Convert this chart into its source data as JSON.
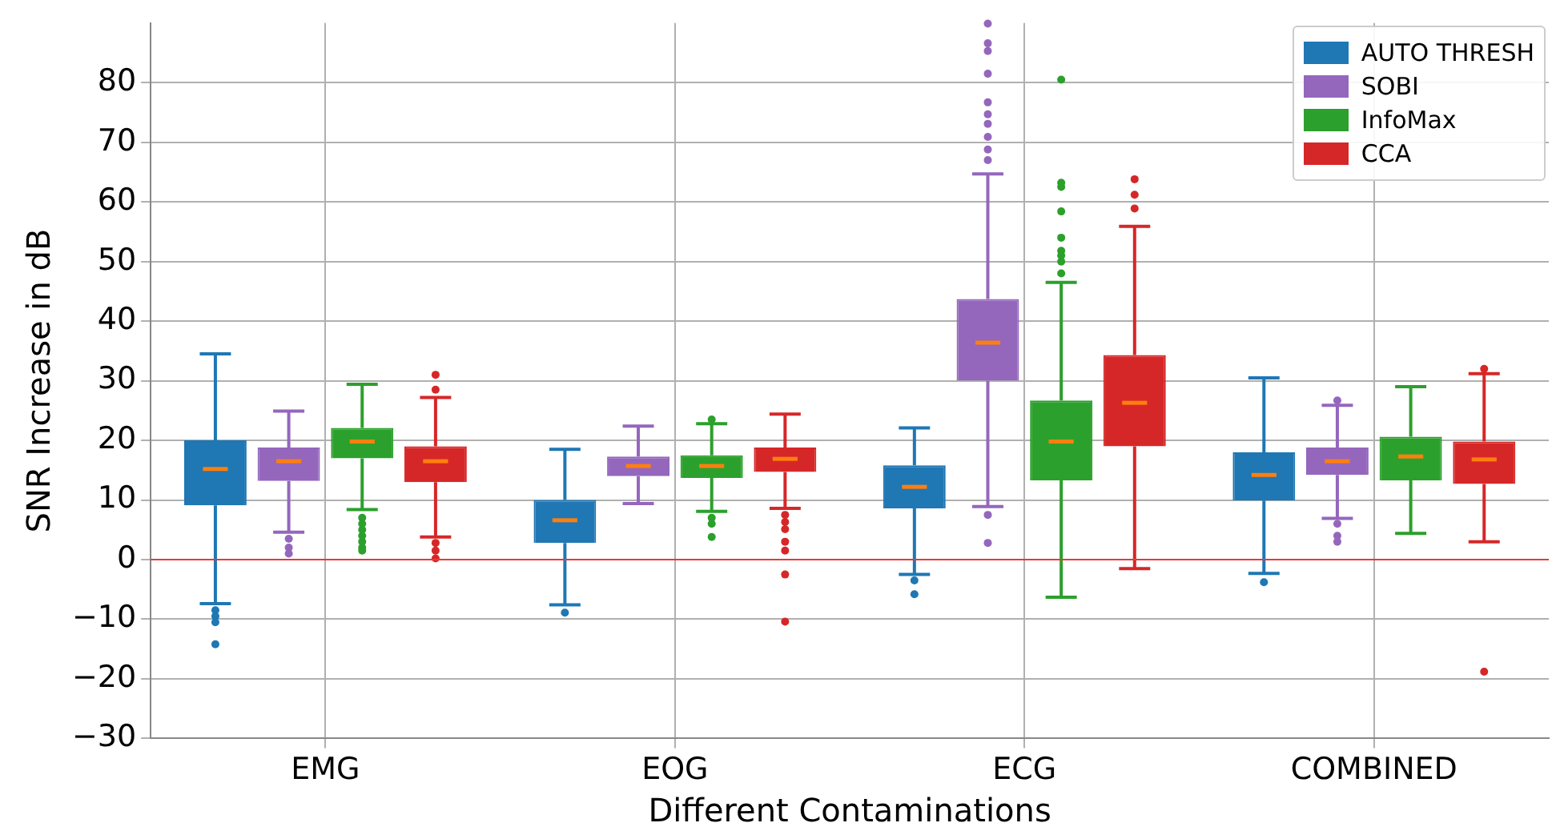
{
  "chart_data": {
    "type": "box",
    "xlabel": "Different Contaminations",
    "ylabel": "SNR Increase in dB",
    "categories": [
      "EMG",
      "EOG",
      "ECG",
      "COMBINED"
    ],
    "ylim": [
      -30,
      90
    ],
    "yticks": [
      -30,
      -20,
      -10,
      0,
      10,
      20,
      30,
      40,
      50,
      60,
      70,
      80
    ],
    "grid": true,
    "legend": "top right",
    "ref_lines": [
      {
        "axis": "y",
        "value": 0,
        "color": "#e8383b"
      }
    ],
    "series": [
      {
        "name": "AUTO THRESH",
        "color": "#1f77b4",
        "boxes": [
          {
            "low": -7.4,
            "q1": 9.1,
            "median": 15.2,
            "q3": 20,
            "high": 34.5,
            "outliers": [
              -8.5,
              -9.5,
              -10.5,
              -14.2
            ]
          },
          {
            "low": -7.6,
            "q1": 2.8,
            "median": 6.6,
            "q3": 10,
            "high": 18.5,
            "outliers": [
              -8.9
            ]
          },
          {
            "low": -2.5,
            "q1": 8.6,
            "median": 12.2,
            "q3": 15.8,
            "high": 22.1,
            "outliers": [
              -3.5,
              -5.8
            ]
          },
          {
            "low": -2.3,
            "q1": 9.9,
            "median": 14.2,
            "q3": 18,
            "high": 30.5,
            "outliers": [
              -3.8
            ]
          }
        ]
      },
      {
        "name": "SOBI",
        "color": "#9467bd",
        "boxes": [
          {
            "low": 4.6,
            "q1": 13.2,
            "median": 16.5,
            "q3": 18.8,
            "high": 24.9,
            "outliers": [
              3.5,
              2,
              1
            ]
          },
          {
            "low": 9.4,
            "q1": 14,
            "median": 15.7,
            "q3": 17.3,
            "high": 22.4
          },
          {
            "low": 8.9,
            "q1": 30,
            "median": 36.4,
            "q3": 43.7,
            "high": 64.7,
            "outliers": [
              89.9,
              86.6,
              85.3,
              81.5,
              76.7,
              74.7,
              73.1,
              70.9,
              68.8,
              67,
              7.5,
              2.8
            ]
          },
          {
            "low": 6.9,
            "q1": 14.2,
            "median": 16.5,
            "q3": 18.8,
            "high": 25.9,
            "outliers": [
              26.7,
              6,
              4,
              3
            ]
          }
        ]
      },
      {
        "name": "InfoMax",
        "color": "#2ca02c",
        "boxes": [
          {
            "low": 8.4,
            "q1": 17,
            "median": 19.8,
            "q3": 22.1,
            "high": 29.4,
            "outliers": [
              7,
              6,
              5,
              4,
              3,
              2,
              1.5
            ]
          },
          {
            "low": 8.1,
            "q1": 13.7,
            "median": 15.7,
            "q3": 17.5,
            "high": 22.8,
            "outliers": [
              23.5,
              7,
              6,
              3.8
            ]
          },
          {
            "low": -6.3,
            "q1": 13.3,
            "median": 19.8,
            "q3": 26.7,
            "high": 46.5,
            "outliers": [
              80.5,
              63.2,
              62.5,
              58.4,
              54,
              51.8,
              51,
              50,
              48
            ]
          },
          {
            "low": 4.4,
            "q1": 13.3,
            "median": 17.3,
            "q3": 20.6,
            "high": 29
          }
        ]
      },
      {
        "name": "CCA",
        "color": "#d62728",
        "boxes": [
          {
            "low": 3.8,
            "q1": 13,
            "median": 16.5,
            "q3": 19,
            "high": 27.2,
            "outliers": [
              31,
              28.5,
              2.8,
              1.5,
              0.2
            ]
          },
          {
            "low": 8.6,
            "q1": 14.7,
            "median": 16.9,
            "q3": 18.8,
            "high": 24.4,
            "outliers": [
              7.5,
              6.3,
              5.1,
              3,
              1.5,
              -2.5,
              -10.4
            ]
          },
          {
            "low": -1.5,
            "q1": 19,
            "median": 26.3,
            "q3": 34.3,
            "high": 55.9,
            "outliers": [
              63.8,
              61.2,
              58.9
            ]
          },
          {
            "low": 3,
            "q1": 12.7,
            "median": 16.8,
            "q3": 19.8,
            "high": 31.2,
            "outliers": [
              32,
              -18.8
            ]
          }
        ]
      }
    ]
  }
}
